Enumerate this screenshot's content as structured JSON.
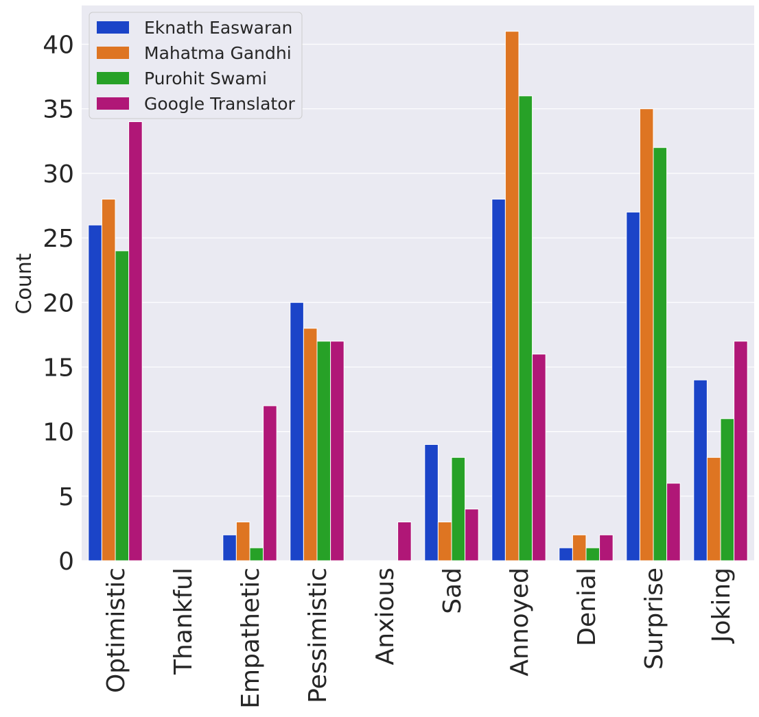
{
  "chart_data": {
    "type": "bar",
    "title": "",
    "xlabel": "",
    "ylabel": "Count",
    "ylim": [
      0,
      43
    ],
    "yticks": [
      0,
      5,
      10,
      15,
      20,
      25,
      30,
      35,
      40
    ],
    "grid": true,
    "legend_position": "top-left",
    "categories": [
      "Optimistic",
      "Thankful",
      "Empathetic",
      "Pessimistic",
      "Anxious",
      "Sad",
      "Annoyed",
      "Denial",
      "Surprise",
      "Joking"
    ],
    "series": [
      {
        "name": "Eknath Easwaran",
        "color": "#1b44c8",
        "values": [
          26,
          0,
          2,
          20,
          0,
          9,
          28,
          1,
          27,
          14
        ]
      },
      {
        "name": "Mahatma Gandhi",
        "color": "#de7522",
        "values": [
          28,
          0,
          3,
          18,
          0,
          3,
          41,
          2,
          35,
          8
        ]
      },
      {
        "name": "Purohit Swami",
        "color": "#27a127",
        "values": [
          24,
          0,
          1,
          17,
          0,
          8,
          36,
          1,
          32,
          11
        ]
      },
      {
        "name": "Google Translator",
        "color": "#b01777",
        "values": [
          34,
          0,
          12,
          17,
          3,
          4,
          16,
          2,
          6,
          17
        ]
      }
    ]
  }
}
